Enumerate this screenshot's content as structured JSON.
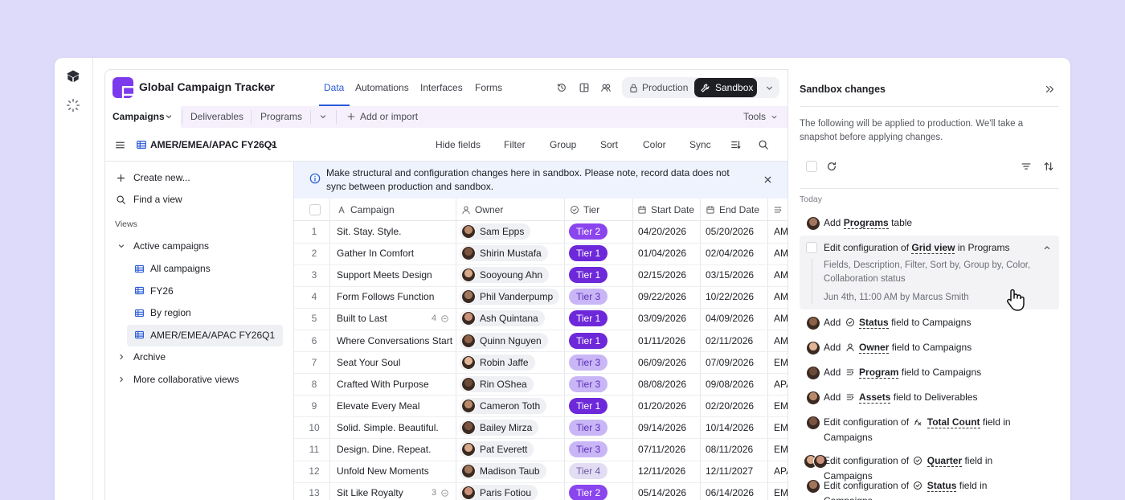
{
  "app": {
    "title": "Global Campaign Tracker",
    "nav": [
      "Data",
      "Automations",
      "Interfaces",
      "Forms"
    ],
    "environments": [
      "Production",
      "Sandbox"
    ]
  },
  "tabs": {
    "tables": [
      "Campaigns",
      "Deliverables",
      "Programs"
    ],
    "add": "Add or import",
    "tools": "Tools"
  },
  "toolbar": {
    "view": "AMER/EMEA/APAC FY26Q1",
    "actions": [
      "Hide fields",
      "Filter",
      "Group",
      "Sort",
      "Color",
      "Sync"
    ]
  },
  "sidebar": {
    "create": "Create new...",
    "find": "Find a view",
    "section": "Views",
    "groups": [
      {
        "name": "Active campaigns",
        "views": [
          "All campaigns",
          "FY26",
          "By region",
          "AMER/EMEA/APAC FY26Q1"
        ]
      },
      {
        "name": "Archive"
      },
      {
        "name": "More collaborative views"
      }
    ]
  },
  "banner": "Make structural and configuration changes here in sandbox. Please note, record data does not sync between production and sandbox.",
  "table": {
    "columns": [
      "Campaign",
      "Owner",
      "Tier",
      "Start Date",
      "End Date"
    ],
    "rows": [
      {
        "number": 1,
        "campaign": "Sit. Stay. Style.",
        "owner": "Sam Epps",
        "tier": "Tier 2",
        "start": "04/20/2026",
        "end": "05/20/2026",
        "region": "AM"
      },
      {
        "number": 2,
        "campaign": "Gather In Comfort",
        "owner": "Shirin Mustafa",
        "tier": "Tier 1",
        "start": "01/04/2026",
        "end": "02/04/2026",
        "region": "AM"
      },
      {
        "number": 3,
        "campaign": "Support Meets Design",
        "owner": "Sooyoung Ahn",
        "tier": "Tier 1",
        "start": "02/15/2026",
        "end": "03/15/2026",
        "region": "AM"
      },
      {
        "number": 4,
        "campaign": "Form Follows Function",
        "owner": "Phil Vanderpump",
        "tier": "Tier 3",
        "start": "09/22/2026",
        "end": "10/22/2026",
        "region": "AM"
      },
      {
        "number": 5,
        "campaign": "Built to Last",
        "comments": 4,
        "owner": "Ash Quintana",
        "tier": "Tier 1",
        "start": "03/09/2026",
        "end": "04/09/2026",
        "region": "AM"
      },
      {
        "number": 6,
        "campaign": "Where Conversations Start",
        "owner": "Quinn Nguyen",
        "tier": "Tier 1",
        "start": "01/11/2026",
        "end": "02/11/2026",
        "region": "AM"
      },
      {
        "number": 7,
        "campaign": "Seat Your Soul",
        "owner": "Robin Jaffe",
        "tier": "Tier 3",
        "start": "06/09/2026",
        "end": "07/09/2026",
        "region": "EM"
      },
      {
        "number": 8,
        "campaign": "Crafted With Purpose",
        "owner": "Rin OShea",
        "tier": "Tier 3",
        "start": "08/08/2026",
        "end": "09/08/2026",
        "region": "APA"
      },
      {
        "number": 9,
        "campaign": "Elevate Every Meal",
        "owner": "Cameron Toth",
        "tier": "Tier 1",
        "start": "01/20/2026",
        "end": "02/20/2026",
        "region": "EM"
      },
      {
        "number": 10,
        "campaign": "Solid. Simple. Beautiful.",
        "owner": "Bailey Mirza",
        "tier": "Tier 3",
        "start": "09/14/2026",
        "end": "10/14/2026",
        "region": "EM"
      },
      {
        "number": 11,
        "campaign": "Design. Dine. Repeat.",
        "owner": "Pat Everett",
        "tier": "Tier 3",
        "start": "07/11/2026",
        "end": "08/11/2026",
        "region": "EM"
      },
      {
        "number": 12,
        "campaign": "Unfold New Moments",
        "owner": "Madison Taub",
        "tier": "Tier 4",
        "start": "12/11/2026",
        "end": "12/11/2027",
        "region": "APA"
      },
      {
        "number": 13,
        "campaign": "Sit Like Royalty",
        "comments": 3,
        "owner": "Paris Fotiou",
        "tier": "Tier 2",
        "start": "05/14/2026",
        "end": "06/14/2026",
        "region": "EM"
      }
    ]
  },
  "panel": {
    "title": "Sandbox changes",
    "description": "The following will be applied to production. We'll take a snapshot before applying changes.",
    "section": "Today",
    "changes": [
      {
        "action": "Add",
        "target": "Programs",
        "rest": "table"
      },
      {
        "action": "Edit configuration of",
        "target": "Grid view",
        "rest": "in Programs",
        "details": "Fields, Description, Filter, Sort by, Group by, Color, Collaboration status",
        "meta": "Jun 4th, 11:00 AM by Marcus Smith"
      },
      {
        "action": "Add",
        "target": "Status",
        "rest": "field to Campaigns"
      },
      {
        "action": "Add",
        "target": "Owner",
        "rest": "field to Campaigns"
      },
      {
        "action": "Add",
        "target": "Program",
        "rest": "field to Campaigns"
      },
      {
        "action": "Add",
        "target": "Assets",
        "rest": "field to Deliverables"
      },
      {
        "action": "Edit configuration of",
        "target": "Total Count",
        "rest": "field in Campaigns"
      },
      {
        "action": "Edit configuration of",
        "target": "Quarter",
        "rest": "field in Campaigns"
      },
      {
        "action": "Edit configuration of",
        "target": "Status",
        "rest": "field in Campaigns"
      }
    ]
  }
}
